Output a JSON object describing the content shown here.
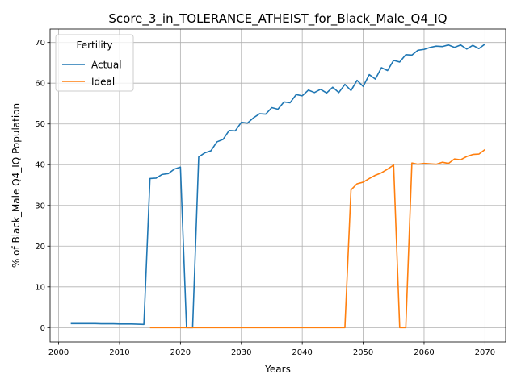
{
  "chart_data": {
    "type": "line",
    "title": "Score_3_in_TOLERANCE_ATHEIST_for_Black_Male_Q4_IQ",
    "xlabel": "Years",
    "ylabel": "% of Black_Male Q4_IQ Population",
    "xlim": [
      1998.6,
      2073.4
    ],
    "ylim": [
      -3.5,
      73.3
    ],
    "xticks": [
      2000,
      2010,
      2020,
      2030,
      2040,
      2050,
      2060,
      2070
    ],
    "yticks": [
      0,
      10,
      20,
      30,
      40,
      50,
      60,
      70
    ],
    "grid": true,
    "legend": {
      "title": "Fertility",
      "position": "upper left"
    },
    "series": [
      {
        "name": "Actual",
        "color": "#1f77b4",
        "x": [
          2002,
          2003,
          2004,
          2005,
          2006,
          2007,
          2008,
          2009,
          2010,
          2011,
          2012,
          2013,
          2014,
          2015,
          2016,
          2017,
          2018,
          2019,
          2020,
          2021,
          2022,
          2023,
          2024,
          2025,
          2026,
          2027,
          2028,
          2029,
          2030,
          2031,
          2032,
          2033,
          2034,
          2035,
          2036,
          2037,
          2038,
          2039,
          2040,
          2041,
          2042,
          2043,
          2044,
          2045,
          2046,
          2047,
          2048,
          2049,
          2050,
          2051,
          2052,
          2053,
          2054,
          2055,
          2056,
          2057,
          2058,
          2059,
          2060,
          2061,
          2062,
          2063,
          2064,
          2065,
          2066,
          2067,
          2068,
          2069,
          2070
        ],
        "values": [
          1.0,
          1.0,
          1.0,
          1.0,
          1.0,
          0.95,
          0.95,
          0.95,
          0.9,
          0.9,
          0.9,
          0.85,
          0.8,
          36.6,
          36.7,
          37.6,
          37.8,
          38.9,
          39.4,
          0.0,
          0.0,
          41.9,
          42.9,
          43.4,
          45.6,
          46.2,
          48.4,
          48.3,
          50.4,
          50.2,
          51.5,
          52.5,
          52.4,
          54.0,
          53.6,
          55.4,
          55.2,
          57.2,
          56.9,
          58.3,
          57.7,
          58.5,
          57.6,
          59.0,
          57.7,
          59.7,
          58.2,
          60.7,
          59.2,
          62.1,
          61.0,
          63.8,
          63.1,
          65.6,
          65.2,
          67.0,
          66.9,
          68.1,
          68.3,
          68.8,
          69.1,
          69.0,
          69.4,
          68.8,
          69.4,
          68.4,
          69.3,
          68.5,
          69.6
        ]
      },
      {
        "name": "Ideal",
        "color": "#ff7f0e",
        "x": [
          2015,
          2016,
          2017,
          2018,
          2019,
          2020,
          2021,
          2022,
          2023,
          2024,
          2025,
          2026,
          2027,
          2028,
          2029,
          2030,
          2031,
          2032,
          2033,
          2034,
          2035,
          2036,
          2037,
          2038,
          2039,
          2040,
          2041,
          2042,
          2043,
          2044,
          2045,
          2046,
          2047,
          2048,
          2049,
          2050,
          2051,
          2052,
          2053,
          2054,
          2055,
          2056,
          2057,
          2058,
          2059,
          2060,
          2061,
          2062,
          2063,
          2064,
          2065,
          2066,
          2067,
          2068,
          2069,
          2070
        ],
        "values": [
          0,
          0,
          0,
          0,
          0,
          0,
          0,
          0,
          0,
          0,
          0,
          0,
          0,
          0,
          0,
          0,
          0,
          0,
          0,
          0,
          0,
          0,
          0,
          0,
          0,
          0,
          0,
          0,
          0,
          0,
          0,
          0,
          0,
          33.8,
          35.3,
          35.7,
          36.6,
          37.4,
          38.0,
          38.9,
          39.9,
          0.0,
          0.0,
          40.4,
          40.1,
          40.3,
          40.2,
          40.1,
          40.6,
          40.3,
          41.4,
          41.2,
          42.0,
          42.5,
          42.6,
          43.7
        ]
      }
    ]
  }
}
